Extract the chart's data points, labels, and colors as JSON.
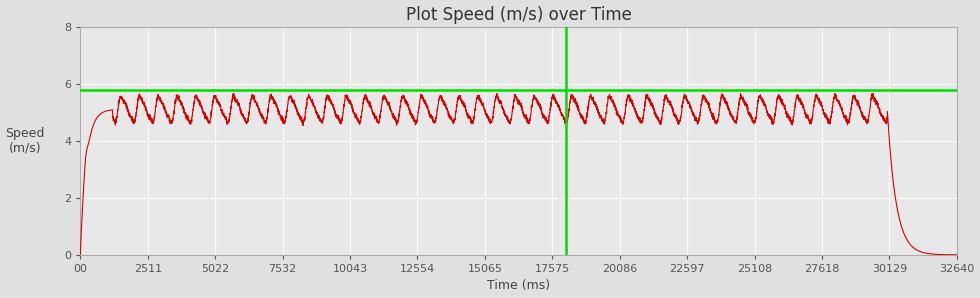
{
  "title": "Plot Speed (m/s) over Time",
  "xlabel": "Time (ms)",
  "ylabel": "Speed\n(m/s)",
  "xlim": [
    0,
    32640
  ],
  "ylim": [
    0,
    8
  ],
  "yticks": [
    0,
    2,
    4,
    6,
    8
  ],
  "xtick_labels": [
    "00",
    "2511",
    "5022",
    "7532",
    "10043",
    "12554",
    "15065",
    "17575",
    "20086",
    "22597",
    "25108",
    "27618",
    "30129",
    "32640"
  ],
  "xtick_values": [
    0,
    2511,
    5022,
    7532,
    10043,
    12554,
    15065,
    17575,
    20086,
    22597,
    25108,
    27618,
    30129,
    32640
  ],
  "line_color": "#dd0000",
  "green_hline": 5.77,
  "green_vline": 18100,
  "hline_color": "#00dd00",
  "vline_color": "#00dd00",
  "bg_color": "#e0e0e0",
  "plot_bg_color": "#e8e8e8",
  "grid_color": "#ffffff",
  "title_fontsize": 12,
  "label_fontsize": 9,
  "tick_fontsize": 8,
  "max_time": 32640,
  "accel_end": 1200,
  "cruise_end": 30050,
  "decel_end": 32640,
  "cruise_speed_mean": 5.1,
  "cruise_speed_amp": 0.58,
  "wave_period_ms": 700,
  "top_speed": 5.77
}
